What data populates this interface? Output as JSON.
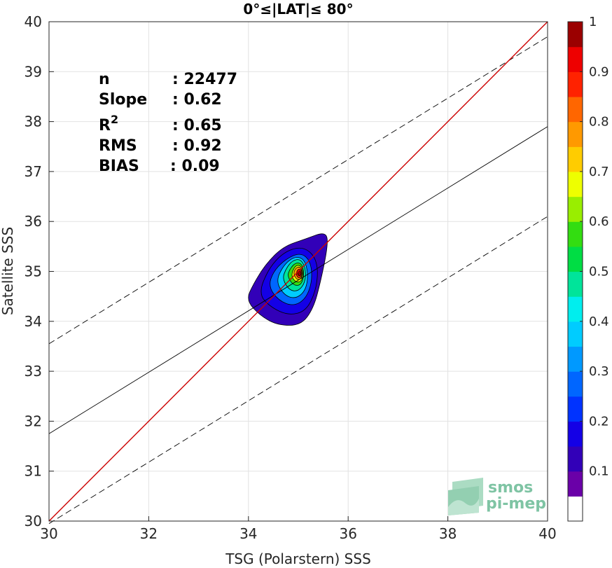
{
  "chart_data": {
    "type": "heatmap",
    "title": "0°≤|LAT|≤ 80°",
    "xlabel": "TSG (Polarstern) SSS",
    "ylabel": "Satellite SSS",
    "xlim": [
      30,
      40
    ],
    "ylim": [
      30,
      40
    ],
    "xticks": [
      "30",
      "32",
      "34",
      "36",
      "38",
      "40"
    ],
    "yticks": [
      "30",
      "31",
      "32",
      "33",
      "34",
      "35",
      "36",
      "37",
      "38",
      "39",
      "40"
    ],
    "grid": true,
    "stats": [
      {
        "label": "n",
        "value": ": 22477"
      },
      {
        "label": "Slope",
        "value": ": 0.62"
      },
      {
        "label": "R",
        "sup": "2",
        "value": ": 0.65"
      },
      {
        "label": "RMS",
        "value": ": 0.92"
      },
      {
        "label": "BIAS",
        "value": ": 0.09"
      }
    ],
    "lines": {
      "identity": {
        "x": [
          30,
          40
        ],
        "y": [
          30,
          40
        ],
        "color": "#cc0000"
      },
      "regression": {
        "x": [
          30,
          40
        ],
        "y": [
          31.75,
          37.9
        ],
        "color": "#000000"
      },
      "upper_bound": {
        "x": [
          30,
          40
        ],
        "y": [
          33.55,
          39.7
        ],
        "color": "#000000",
        "dashed": true
      },
      "lower_bound": {
        "x": [
          30,
          40
        ],
        "y": [
          29.95,
          36.1
        ],
        "color": "#000000",
        "dashed": true
      }
    },
    "density_peak": {
      "x": 35.05,
      "y": 34.95
    },
    "density_contours": [
      {
        "level": 0.05,
        "color": "#3200b8",
        "points": [
          [
            33.95,
            34.42
          ],
          [
            34.25,
            34.1
          ],
          [
            34.6,
            33.92
          ],
          [
            35.05,
            33.92
          ],
          [
            35.3,
            34.25
          ],
          [
            35.45,
            34.8
          ],
          [
            35.6,
            35.55
          ],
          [
            35.55,
            35.8
          ],
          [
            35.15,
            35.65
          ],
          [
            34.7,
            35.5
          ],
          [
            34.35,
            35.15
          ],
          [
            34.1,
            34.75
          ]
        ]
      },
      {
        "level": 0.15,
        "color": "#1400e6",
        "points": [
          [
            34.2,
            34.55
          ],
          [
            34.45,
            34.28
          ],
          [
            34.8,
            34.12
          ],
          [
            35.15,
            34.2
          ],
          [
            35.35,
            34.6
          ],
          [
            35.4,
            35.05
          ],
          [
            35.3,
            35.35
          ],
          [
            35.05,
            35.5
          ],
          [
            34.7,
            35.38
          ],
          [
            34.4,
            35.05
          ]
        ]
      },
      {
        "level": 0.25,
        "color": "#0066ff",
        "points": [
          [
            34.4,
            34.7
          ],
          [
            34.6,
            34.42
          ],
          [
            34.9,
            34.3
          ],
          [
            35.15,
            34.45
          ],
          [
            35.28,
            34.8
          ],
          [
            35.25,
            35.2
          ],
          [
            35.05,
            35.38
          ],
          [
            34.75,
            35.25
          ],
          [
            34.5,
            35.0
          ]
        ]
      },
      {
        "level": 0.35,
        "color": "#00ccff",
        "points": [
          [
            34.55,
            34.8
          ],
          [
            34.72,
            34.52
          ],
          [
            34.95,
            34.45
          ],
          [
            35.15,
            34.62
          ],
          [
            35.2,
            34.95
          ],
          [
            35.12,
            35.25
          ],
          [
            34.92,
            35.3
          ],
          [
            34.7,
            35.12
          ]
        ]
      },
      {
        "level": 0.45,
        "color": "#00e49a",
        "points": [
          [
            34.68,
            34.85
          ],
          [
            34.82,
            34.62
          ],
          [
            35.0,
            34.6
          ],
          [
            35.14,
            34.78
          ],
          [
            35.15,
            35.05
          ],
          [
            35.05,
            35.25
          ],
          [
            34.88,
            35.22
          ],
          [
            34.75,
            35.05
          ]
        ]
      },
      {
        "level": 0.55,
        "color": "#33dd11",
        "points": [
          [
            34.78,
            34.9
          ],
          [
            34.9,
            34.72
          ],
          [
            35.05,
            34.72
          ],
          [
            35.12,
            34.92
          ],
          [
            35.08,
            35.15
          ],
          [
            34.95,
            35.18
          ],
          [
            34.83,
            35.05
          ]
        ]
      },
      {
        "level": 0.65,
        "color": "#eeff00",
        "points": [
          [
            34.85,
            34.92
          ],
          [
            34.95,
            34.78
          ],
          [
            35.07,
            34.8
          ],
          [
            35.1,
            34.98
          ],
          [
            35.05,
            35.12
          ],
          [
            34.94,
            35.12
          ]
        ]
      },
      {
        "level": 0.75,
        "color": "#ff9900",
        "points": [
          [
            34.9,
            34.95
          ],
          [
            34.98,
            34.82
          ],
          [
            35.07,
            34.86
          ],
          [
            35.08,
            35.02
          ],
          [
            35.02,
            35.1
          ],
          [
            34.94,
            35.06
          ]
        ]
      },
      {
        "level": 0.85,
        "color": "#ff2200",
        "points": [
          [
            34.95,
            34.95
          ],
          [
            35.0,
            34.86
          ],
          [
            35.07,
            34.9
          ],
          [
            35.07,
            35.02
          ],
          [
            35.0,
            35.06
          ]
        ]
      },
      {
        "level": 0.95,
        "color": "#9b0000",
        "points": [
          [
            34.98,
            34.95
          ],
          [
            35.02,
            34.9
          ],
          [
            35.06,
            34.94
          ],
          [
            35.05,
            35.0
          ],
          [
            35.0,
            35.02
          ]
        ]
      }
    ],
    "colorbar": {
      "ticks": [
        "0.1",
        "0.2",
        "0.3",
        "0.4",
        "0.5",
        "0.6",
        "0.7",
        "0.8",
        "0.9",
        "1"
      ],
      "range": [
        0,
        1
      ],
      "levels": [
        {
          "from": 0.0,
          "to": 0.05,
          "color": "#ffffff"
        },
        {
          "from": 0.05,
          "to": 0.1,
          "color": "#6a00a8"
        },
        {
          "from": 0.1,
          "to": 0.15,
          "color": "#3200b8"
        },
        {
          "from": 0.15,
          "to": 0.2,
          "color": "#1400e6"
        },
        {
          "from": 0.2,
          "to": 0.25,
          "color": "#0033ff"
        },
        {
          "from": 0.25,
          "to": 0.3,
          "color": "#0066ff"
        },
        {
          "from": 0.3,
          "to": 0.35,
          "color": "#0099ff"
        },
        {
          "from": 0.35,
          "to": 0.4,
          "color": "#00ccff"
        },
        {
          "from": 0.4,
          "to": 0.45,
          "color": "#00eeee"
        },
        {
          "from": 0.45,
          "to": 0.5,
          "color": "#00e49a"
        },
        {
          "from": 0.5,
          "to": 0.55,
          "color": "#00dd44"
        },
        {
          "from": 0.55,
          "to": 0.6,
          "color": "#33dd11"
        },
        {
          "from": 0.6,
          "to": 0.65,
          "color": "#99ee00"
        },
        {
          "from": 0.65,
          "to": 0.7,
          "color": "#eeff00"
        },
        {
          "from": 0.7,
          "to": 0.75,
          "color": "#ffcc00"
        },
        {
          "from": 0.75,
          "to": 0.8,
          "color": "#ff9900"
        },
        {
          "from": 0.8,
          "to": 0.85,
          "color": "#ff6600"
        },
        {
          "from": 0.85,
          "to": 0.9,
          "color": "#ff2200"
        },
        {
          "from": 0.9,
          "to": 0.95,
          "color": "#ee0000"
        },
        {
          "from": 0.95,
          "to": 1.0,
          "color": "#9b0000"
        }
      ]
    }
  },
  "logo": {
    "line1": "smos",
    "line2": "pi-mep"
  }
}
